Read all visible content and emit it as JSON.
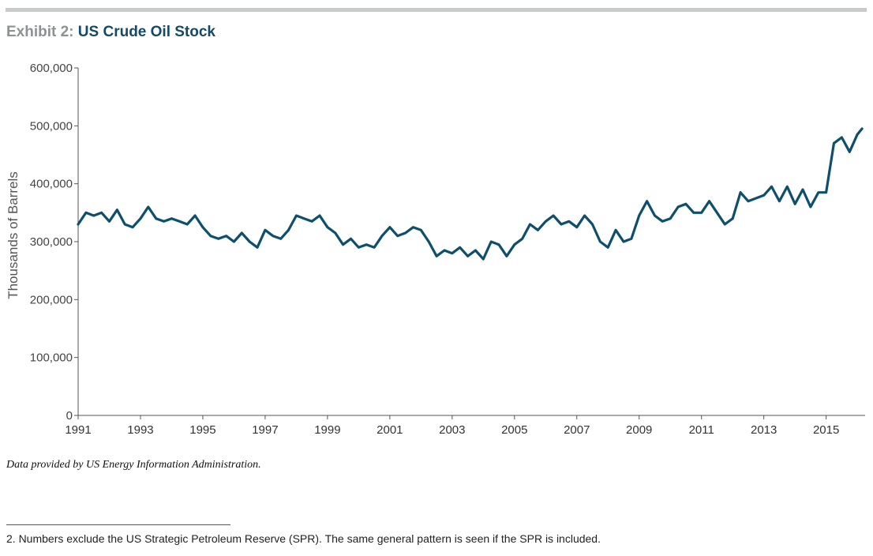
{
  "header": {
    "exhibit_label": "Exhibit 2:",
    "title": "US Crude Oil Stock"
  },
  "colors": {
    "line": "#0d4f6c",
    "axis": "#555555",
    "title_label": "#8e9193",
    "title_text": "#154a66",
    "rule": "#c8c9cb"
  },
  "chart_data": {
    "type": "line",
    "title": "US Crude Oil Stock",
    "xlabel": "",
    "ylabel": "Thousands of Barrels",
    "xlim": [
      1991.0,
      2016.25
    ],
    "ylim": [
      0,
      600000
    ],
    "x_ticks": [
      1991,
      1993,
      1995,
      1997,
      1999,
      2001,
      2003,
      2005,
      2007,
      2009,
      2011,
      2013,
      2015
    ],
    "y_ticks": [
      0,
      100000,
      200000,
      300000,
      400000,
      500000,
      600000
    ],
    "y_tick_labels": [
      "0",
      "100,000",
      "200,000",
      "300,000",
      "400,000",
      "500,000",
      "600,000"
    ],
    "grid": false,
    "series": [
      {
        "x": [
          1991.0,
          1991.25,
          1991.5,
          1991.75,
          1992.0,
          1992.25,
          1992.5,
          1992.75,
          1993.0,
          1993.25,
          1993.5,
          1993.75,
          1994.0,
          1994.25,
          1994.5,
          1994.75,
          1995.0,
          1995.25,
          1995.5,
          1995.75,
          1996.0,
          1996.25,
          1996.5,
          1996.75,
          1997.0,
          1997.25,
          1997.5,
          1997.75,
          1998.0,
          1998.25,
          1998.5,
          1998.75,
          1999.0,
          1999.25,
          1999.5,
          1999.75,
          2000.0,
          2000.25,
          2000.5,
          2000.75,
          2001.0,
          2001.25,
          2001.5,
          2001.75,
          2002.0,
          2002.25,
          2002.5,
          2002.75,
          2003.0,
          2003.25,
          2003.5,
          2003.75,
          2004.0,
          2004.25,
          2004.5,
          2004.75,
          2005.0,
          2005.25,
          2005.5,
          2005.75,
          2006.0,
          2006.25,
          2006.5,
          2006.75,
          2007.0,
          2007.25,
          2007.5,
          2007.75,
          2008.0,
          2008.25,
          2008.5,
          2008.75,
          2009.0,
          2009.25,
          2009.5,
          2009.75,
          2010.0,
          2010.25,
          2010.5,
          2010.75,
          2011.0,
          2011.25,
          2011.5,
          2011.75,
          2012.0,
          2012.25,
          2012.5,
          2012.75,
          2013.0,
          2013.25,
          2013.5,
          2013.75,
          2014.0,
          2014.25,
          2014.5,
          2014.75,
          2015.0,
          2015.25,
          2015.5,
          2015.75,
          2016.0,
          2016.15
        ],
        "values": [
          330000,
          350000,
          345000,
          350000,
          335000,
          355000,
          330000,
          325000,
          340000,
          360000,
          340000,
          335000,
          340000,
          335000,
          330000,
          345000,
          325000,
          310000,
          305000,
          310000,
          300000,
          315000,
          300000,
          290000,
          320000,
          310000,
          305000,
          320000,
          345000,
          340000,
          335000,
          345000,
          325000,
          315000,
          295000,
          305000,
          290000,
          295000,
          290000,
          310000,
          325000,
          310000,
          315000,
          325000,
          320000,
          300000,
          275000,
          285000,
          280000,
          290000,
          275000,
          285000,
          270000,
          300000,
          295000,
          275000,
          295000,
          305000,
          330000,
          320000,
          335000,
          345000,
          330000,
          335000,
          325000,
          345000,
          330000,
          300000,
          290000,
          320000,
          300000,
          305000,
          345000,
          370000,
          345000,
          335000,
          340000,
          360000,
          365000,
          350000,
          350000,
          370000,
          350000,
          330000,
          340000,
          385000,
          370000,
          375000,
          380000,
          395000,
          370000,
          395000,
          365000,
          390000,
          360000,
          385000,
          385000,
          470000,
          480000,
          455000,
          485000,
          495000
        ]
      }
    ]
  },
  "note": "Data provided by US Energy Information Administration.",
  "footnote": "2.  Numbers exclude the US Strategic Petroleum Reserve (SPR). The same general pattern is seen if the SPR is included."
}
